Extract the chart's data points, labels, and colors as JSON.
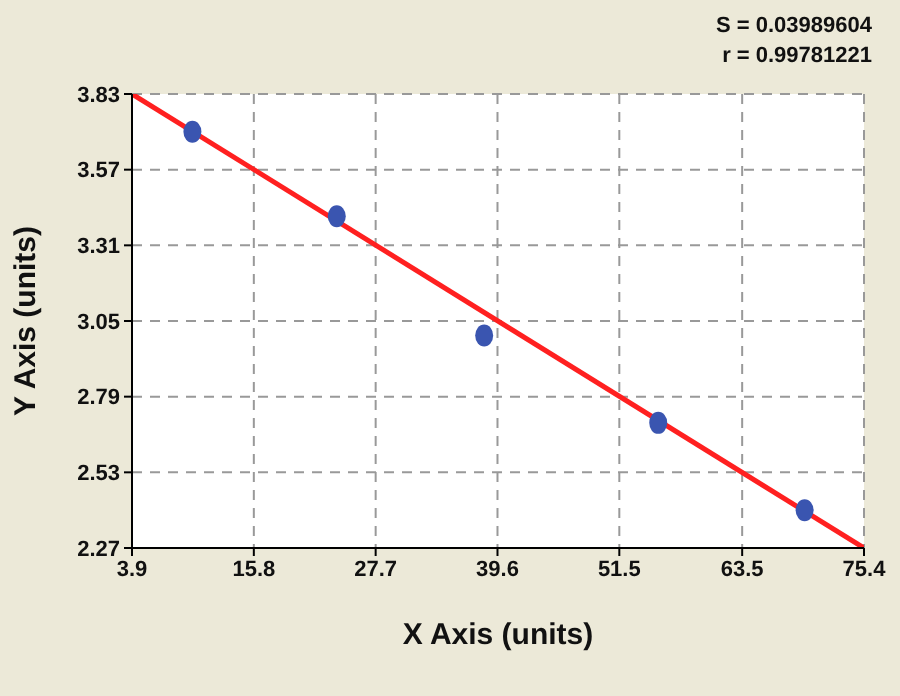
{
  "chart_data": {
    "type": "scatter",
    "xlabel": "X Axis (units)",
    "ylabel": "Y Axis (units)",
    "annotations": [
      "S = 0.03989604",
      "r = 0.99781221"
    ],
    "xlim": [
      3.9,
      75.4
    ],
    "xticks": [
      3.9,
      15.8,
      27.7,
      39.6,
      51.5,
      63.5,
      75.4
    ],
    "ylim": [
      2.27,
      3.83
    ],
    "yticks": [
      2.27,
      2.53,
      2.79,
      3.05,
      3.31,
      3.57,
      3.83
    ],
    "grid": true,
    "legend": false,
    "series": [
      {
        "color": "#3a55b0",
        "marker": "circle",
        "x": [
          9.8,
          23.9,
          38.3,
          55.3,
          69.6
        ],
        "values": [
          3.7,
          3.41,
          3.0,
          2.7,
          2.4
        ]
      },
      {
        "type": "line",
        "color": "#ff2020",
        "marker": "none",
        "line_style": "solid",
        "x": [
          3.9,
          75.4
        ],
        "values": [
          3.83,
          2.27
        ]
      }
    ]
  }
}
